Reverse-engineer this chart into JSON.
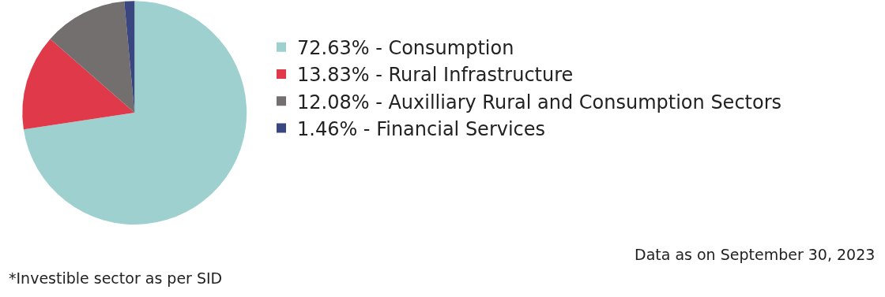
{
  "chart_data": {
    "type": "pie",
    "categories": [
      "72.63% - Consumption",
      "13.83% - Rural Infrastructure",
      "12.08% - Auxilliary Rural and Consumption Sectors",
      "1.46% - Financial Services"
    ],
    "values": [
      72.63,
      13.83,
      12.08,
      1.46
    ],
    "colors": [
      "#9dd0ce",
      "#e03a4a",
      "#736f6e",
      "#3a4680"
    ],
    "legend": "right",
    "annotations": [
      "Data as on September 30, 2023",
      "*Investible sector as per SID"
    ]
  }
}
